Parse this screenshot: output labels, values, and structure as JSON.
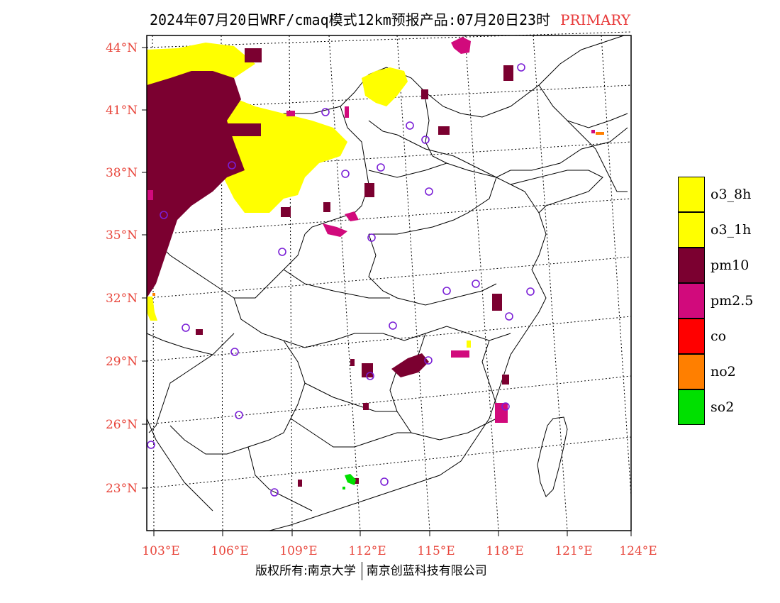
{
  "title": {
    "text": "2024年07月20日WRF/cmaq模式12km预报产品:07月20日23时",
    "tag": "PRIMARY"
  },
  "axes": {
    "lat_labels": [
      "44°N",
      "41°N",
      "38°N",
      "35°N",
      "32°N",
      "29°N",
      "26°N",
      "23°N"
    ],
    "lon_labels": [
      "103°E",
      "106°E",
      "109°E",
      "112°E",
      "115°E",
      "118°E",
      "121°E",
      "124°E"
    ]
  },
  "legend": [
    {
      "label": "o3_8h",
      "color": "#ffff00"
    },
    {
      "label": "o3_1h",
      "color": "#ffff00"
    },
    {
      "label": "pm10",
      "color": "#7b0030"
    },
    {
      "label": "pm2.5",
      "color": "#d10a7c"
    },
    {
      "label": "co",
      "color": "#ff0000"
    },
    {
      "label": "no2",
      "color": "#ff7f00"
    },
    {
      "label": "so2",
      "color": "#00e000"
    }
  ],
  "colors": {
    "label": "#e8463c",
    "station": "#7a1fd6",
    "o3": "#ffff00",
    "pm10": "#7b0030",
    "pm25": "#d10a7c",
    "no2": "#ff7f00",
    "so2": "#00e000"
  },
  "footer": {
    "left": "版权所有:南京大学",
    "right": "南京创蓝科技有限公司"
  }
}
